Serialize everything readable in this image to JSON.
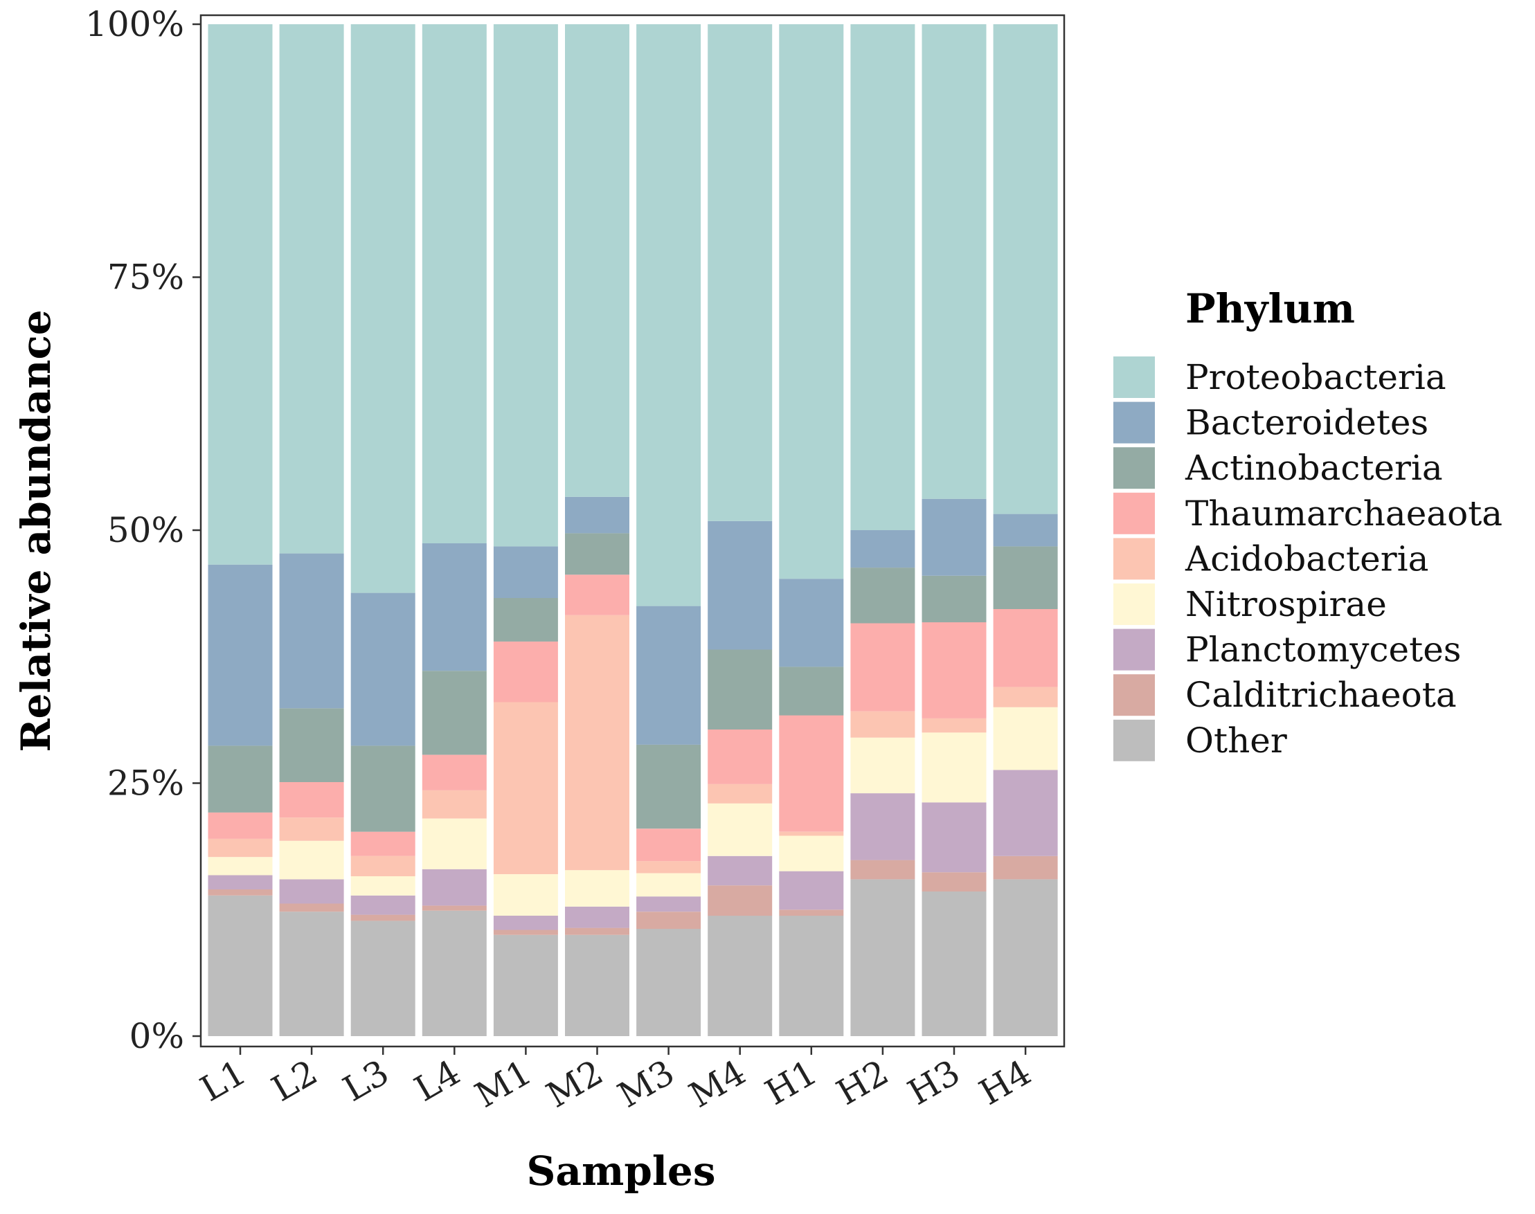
{
  "chart_data": {
    "type": "bar",
    "stacked": true,
    "xlabel": "Samples",
    "ylabel": "Relative abundance",
    "ylim": [
      0,
      100
    ],
    "yticks": [
      "0%",
      "25%",
      "50%",
      "75%",
      "100%"
    ],
    "ytick_values": [
      0,
      25,
      50,
      75,
      100
    ],
    "legend_title": "Phylum",
    "legend_position": "right",
    "categories": [
      "L1",
      "L2",
      "L3",
      "L4",
      "M1",
      "M2",
      "M3",
      "M4",
      "H1",
      "H2",
      "H3",
      "H4"
    ],
    "series": [
      {
        "name": "Other",
        "color": "#bdbdbd",
        "values": [
          13.9,
          12.3,
          11.4,
          12.4,
          10.0,
          10.0,
          10.6,
          11.9,
          11.9,
          15.5,
          14.3,
          15.5
        ]
      },
      {
        "name": "Calditrichaeota",
        "color": "#d8aaa2",
        "values": [
          0.6,
          0.8,
          0.6,
          0.5,
          0.5,
          0.7,
          1.7,
          3.0,
          0.6,
          1.9,
          1.9,
          2.3
        ]
      },
      {
        "name": "Planctomycetes",
        "color": "#c4aac5",
        "values": [
          1.4,
          2.4,
          1.9,
          3.6,
          1.4,
          2.1,
          1.5,
          2.9,
          3.8,
          6.6,
          6.9,
          8.5
        ]
      },
      {
        "name": "Nitrospirae",
        "color": "#fff7d4",
        "values": [
          1.8,
          3.8,
          1.9,
          5.0,
          4.1,
          3.6,
          2.3,
          5.2,
          3.5,
          5.5,
          6.9,
          6.2
        ]
      },
      {
        "name": "Acidobacteria",
        "color": "#fcc5b2",
        "values": [
          1.8,
          2.3,
          2.0,
          2.8,
          17.0,
          25.2,
          1.2,
          1.9,
          0.4,
          2.6,
          1.4,
          2.0
        ]
      },
      {
        "name": "Thaumarchaeaota",
        "color": "#fcaeac",
        "values": [
          2.6,
          3.5,
          2.4,
          3.5,
          6.0,
          4.0,
          3.2,
          5.4,
          11.5,
          8.7,
          9.5,
          7.7
        ]
      },
      {
        "name": "Actinobacteria",
        "color": "#94aba4",
        "values": [
          6.6,
          7.3,
          8.5,
          8.3,
          4.3,
          4.1,
          8.3,
          7.9,
          4.8,
          5.5,
          4.6,
          6.2
        ]
      },
      {
        "name": "Bacteroidetes",
        "color": "#8eaac3",
        "values": [
          17.9,
          15.3,
          15.1,
          12.6,
          5.1,
          3.6,
          13.7,
          12.7,
          8.7,
          3.7,
          7.6,
          3.2
        ]
      },
      {
        "name": "Proteobacteria",
        "color": "#aed4d2",
        "values": [
          53.4,
          52.3,
          56.2,
          51.3,
          51.6,
          46.7,
          57.5,
          49.1,
          54.8,
          50.0,
          46.9,
          48.4
        ]
      }
    ]
  }
}
